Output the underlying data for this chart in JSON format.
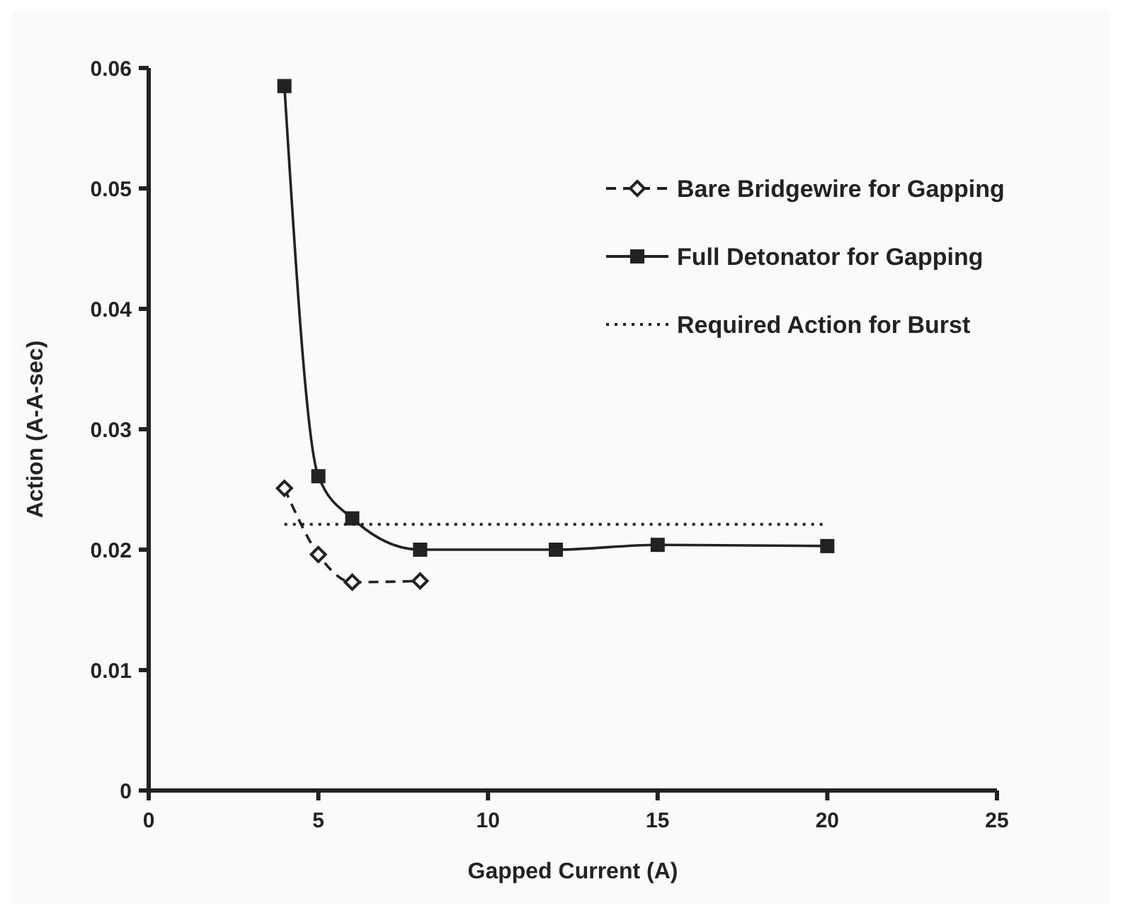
{
  "chart_data": {
    "type": "line",
    "xlabel": "Gapped Current (A)",
    "ylabel": "Action  (A-A-sec)",
    "xlim": [
      0,
      25
    ],
    "xticks": [
      0,
      5,
      10,
      15,
      20,
      25
    ],
    "ylim": [
      0,
      0.06
    ],
    "yticks": [
      0,
      0.01,
      0.02,
      0.03,
      0.04,
      0.05,
      0.06
    ],
    "grid": false,
    "legend": "right",
    "series": [
      {
        "name": "Bare Bridgewire for Gapping",
        "color": "#222222",
        "x": [
          4,
          5,
          6,
          8
        ],
        "values": [
          0.0251,
          0.0196,
          0.0173,
          0.0174
        ],
        "marker": "diamond",
        "line_style": "dashed"
      },
      {
        "name": "Full Detonator for Gapping",
        "color": "#222222",
        "x": [
          4,
          5,
          6,
          8,
          12,
          15,
          20
        ],
        "values": [
          0.0585,
          0.0261,
          0.0226,
          0.02,
          0.02,
          0.0204,
          0.0203
        ],
        "marker": "square",
        "line_style": "solid"
      },
      {
        "name": "Required Action for Burst",
        "color": "#222222",
        "x": [
          4,
          20
        ],
        "values": [
          0.0221,
          0.0221
        ],
        "marker": "none",
        "line_style": "dotted"
      }
    ]
  }
}
